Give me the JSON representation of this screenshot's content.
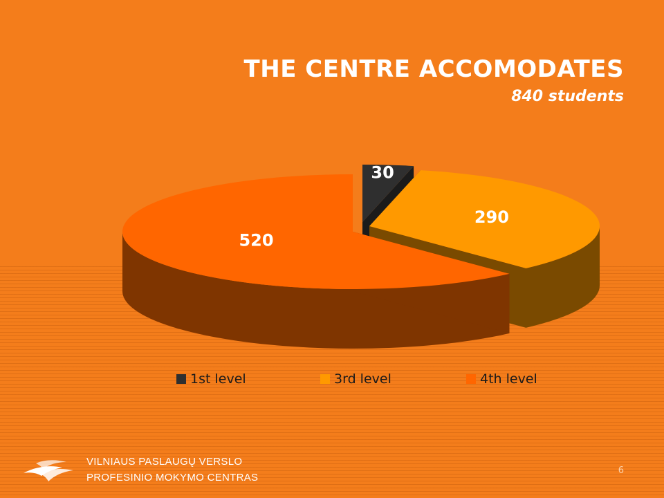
{
  "title": "THE CENTRE ACCOMODATES",
  "subtitle": "840 students",
  "chart_data": {
    "type": "pie",
    "style": "3d",
    "labels": [
      "1st level",
      "3rd level",
      "4th level"
    ],
    "values": [
      30,
      290,
      520
    ],
    "colors": [
      "#2f2f2f",
      "#ff9900",
      "#ff6600"
    ],
    "data_labels": [
      "30",
      "290",
      "520"
    ],
    "legend_position": "bottom"
  },
  "footer": {
    "line1": "VILNIAUS PASLAUGŲ VERSLO",
    "line2": "PROFESINIO MOKYMO CENTRAS",
    "logo_icon": "bird-logo-icon"
  },
  "page_number": "6",
  "colors": {
    "background": "#f47d1b",
    "text": "#ffffff"
  }
}
